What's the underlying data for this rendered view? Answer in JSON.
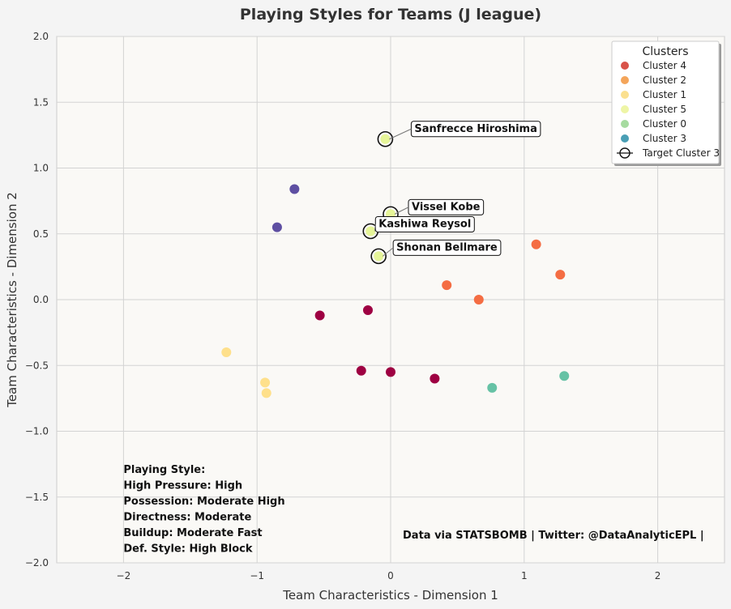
{
  "chart_data": {
    "type": "scatter",
    "title": "Playing Styles for Teams (J league)",
    "xlabel": "Team Characteristics - Dimension 1",
    "ylabel": "Team Characteristics - Dimension 2",
    "xlim": [
      -2.5,
      2.5
    ],
    "ylim": [
      -2.0,
      2.0
    ],
    "xticks": [
      -2,
      -1,
      0,
      1,
      2
    ],
    "yticks": [
      -2.0,
      -1.5,
      -1.0,
      -0.5,
      0.0,
      0.5,
      1.0,
      1.5,
      2.0
    ],
    "xtick_labels": [
      "−2",
      "−1",
      "0",
      "1",
      "2"
    ],
    "ytick_labels": [
      "−2.0",
      "−1.5",
      "−1.0",
      "−0.5",
      "0.0",
      "0.5",
      "1.0",
      "1.5",
      "2.0"
    ],
    "grid": true,
    "legend": {
      "title": "Clusters",
      "position": "top-right",
      "entries": [
        {
          "label": "Cluster 4",
          "color": "#d9534a"
        },
        {
          "label": "Cluster 2",
          "color": "#f4a55a"
        },
        {
          "label": "Cluster 1",
          "color": "#fbe08f"
        },
        {
          "label": "Cluster 5",
          "color": "#eef5a6"
        },
        {
          "label": "Cluster 0",
          "color": "#a6dba0"
        },
        {
          "label": "Cluster 3",
          "color": "#4a9fb5"
        },
        {
          "label": "Target Cluster 3",
          "color": "#000000",
          "marker": "open-circle"
        }
      ]
    },
    "series": [
      {
        "color": "#5e4fa2",
        "points": [
          [
            -0.72,
            0.84
          ],
          [
            -0.85,
            0.55
          ]
        ]
      },
      {
        "color": "#f46d43",
        "points": [
          [
            1.09,
            0.42
          ],
          [
            1.27,
            0.19
          ],
          [
            0.42,
            0.11
          ],
          [
            0.66,
            0.0
          ]
        ]
      },
      {
        "color": "#fee08b",
        "points": [
          [
            -1.23,
            -0.4
          ],
          [
            -0.94,
            -0.63
          ],
          [
            -0.93,
            -0.71
          ]
        ]
      },
      {
        "color": "#e6f598",
        "points": [
          [
            -0.04,
            1.22
          ],
          [
            0.0,
            0.65
          ],
          [
            -0.15,
            0.52
          ],
          [
            -0.09,
            0.33
          ]
        ]
      },
      {
        "color": "#66c2a5",
        "points": [
          [
            1.3,
            -0.58
          ],
          [
            0.76,
            -0.67
          ]
        ]
      },
      {
        "color": "#9e0142",
        "points": [
          [
            -0.53,
            -0.12
          ],
          [
            -0.17,
            -0.08
          ],
          [
            -0.22,
            -0.54
          ],
          [
            0.0,
            -0.55
          ],
          [
            0.33,
            -0.6
          ]
        ]
      }
    ],
    "highlighted": [
      {
        "name": "Sanfrecce Hiroshima",
        "x": -0.04,
        "y": 1.22
      },
      {
        "name": "Vissel Kobe",
        "x": 0.0,
        "y": 0.65
      },
      {
        "name": "Kashiwa Reysol",
        "x": -0.15,
        "y": 0.52
      },
      {
        "name": "Shonan Bellmare",
        "x": -0.09,
        "y": 0.33
      }
    ],
    "style_text": {
      "lines": [
        "Playing Style:",
        "High Pressure: High",
        "Possession: Moderate High",
        "Directness: Moderate",
        "Buildup: Moderate Fast",
        "Def. Style: High Block"
      ]
    },
    "credit": "Data via STATSBOMB | Twitter: @DataAnalyticEPL |"
  }
}
